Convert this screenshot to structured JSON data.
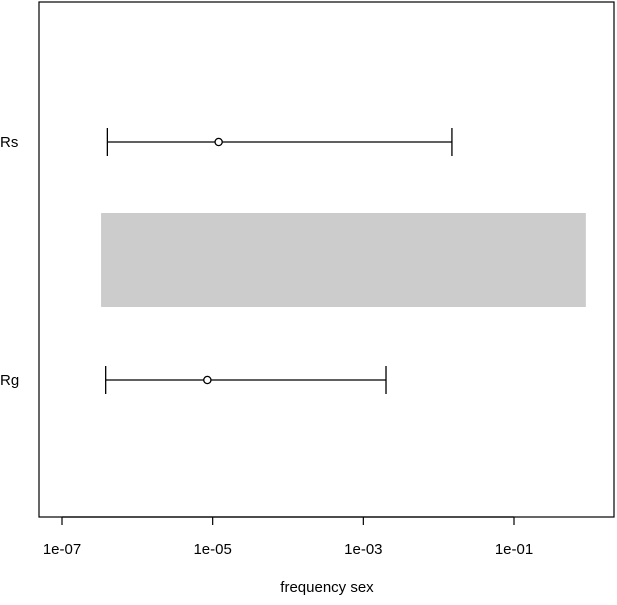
{
  "chart_data": {
    "type": "interval",
    "title": "",
    "xlabel": "frequency sex",
    "ylabel": "",
    "x_scale": "log10",
    "xlim": [
      1e-07,
      1
    ],
    "x_ticks": [
      {
        "value": 1e-07,
        "label": "1e-07"
      },
      {
        "value": 1e-05,
        "label": "1e-05"
      },
      {
        "value": 0.001,
        "label": "1e-03"
      },
      {
        "value": 0.1,
        "label": "1e-01"
      }
    ],
    "categories": [
      "Rs",
      "Rg"
    ],
    "series": [
      {
        "category": "Rs",
        "estimate": 1.2e-05,
        "lower": 4e-07,
        "upper": 0.015
      },
      {
        "category": "Rg",
        "estimate": 8.5e-06,
        "lower": 3.8e-07,
        "upper": 0.002
      }
    ],
    "shaded_band": {
      "x_from": 3.3e-07,
      "x_to": 0.9
    },
    "grid": false,
    "legend": "none",
    "colors": {
      "line": "#000000",
      "band": "#cccccc",
      "frame": "#000000",
      "background": "#ffffff"
    }
  }
}
